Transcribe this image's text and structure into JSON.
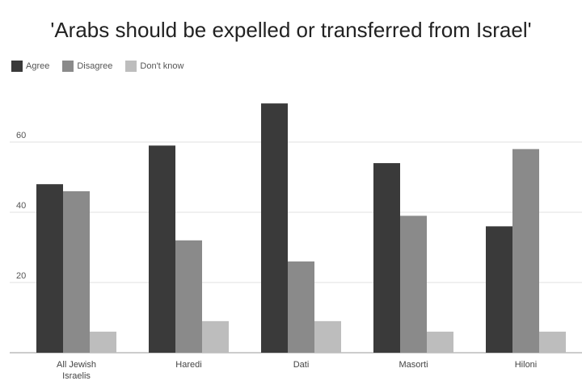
{
  "chart_data": {
    "type": "bar",
    "title": "'Arabs should be expelled or transferred from Israel'",
    "categories": [
      [
        "All Jewish",
        "Israelis"
      ],
      [
        "Haredi"
      ],
      [
        "Dati"
      ],
      [
        "Masorti"
      ],
      [
        "Hiloni"
      ]
    ],
    "series": [
      {
        "name": "Agree",
        "color": "#3a3a3a",
        "values": [
          48,
          59,
          71,
          54,
          36
        ]
      },
      {
        "name": "Disagree",
        "color": "#8a8a8a",
        "values": [
          46,
          32,
          26,
          39,
          58
        ]
      },
      {
        "name": "Don't know",
        "color": "#bdbdbd",
        "values": [
          6,
          9,
          9,
          6,
          6
        ]
      }
    ],
    "yticks": [
      20,
      40,
      60
    ],
    "ylim": [
      0,
      75
    ],
    "grid": true,
    "legend_position": "top-left"
  }
}
